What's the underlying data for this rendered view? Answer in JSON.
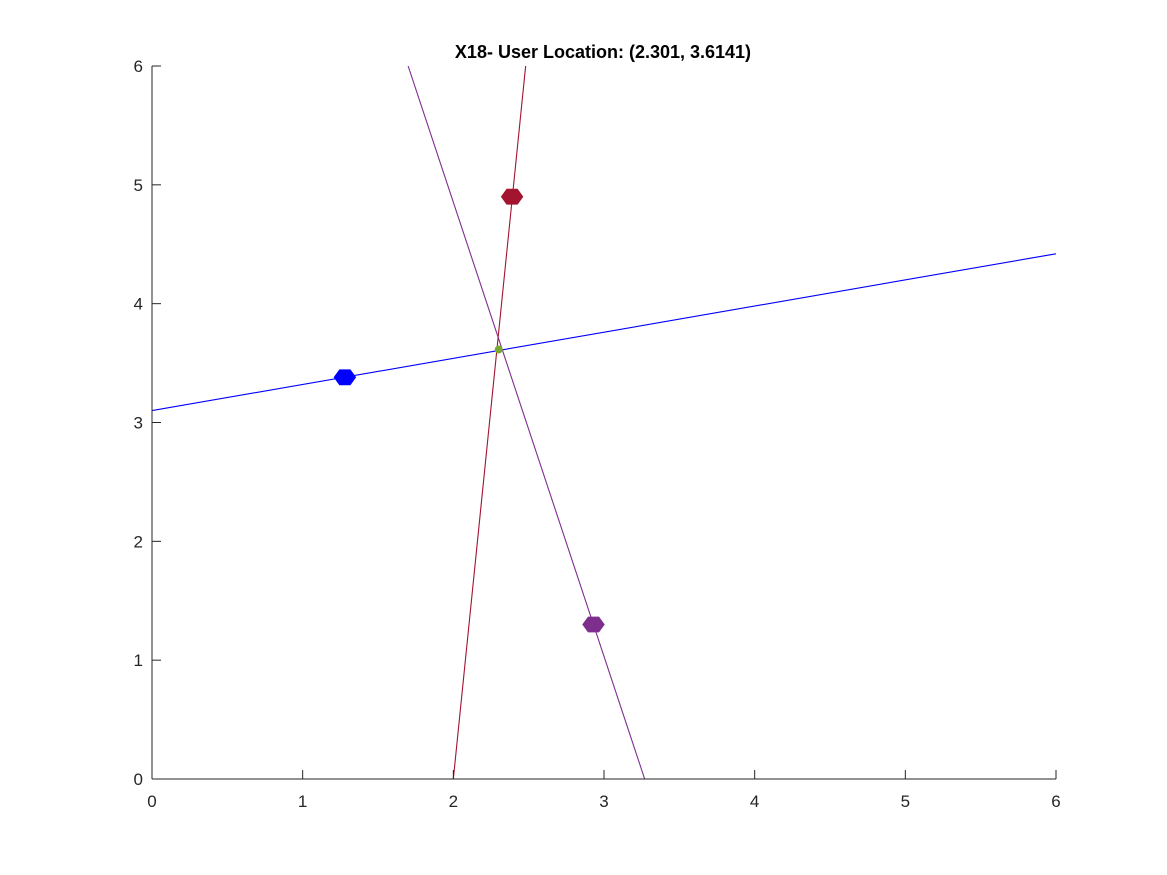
{
  "chart_data": {
    "type": "scatter",
    "title": "X18- User Location: (2.301, 3.6141)",
    "xlabel": "",
    "ylabel": "",
    "xlim": [
      0,
      6
    ],
    "ylim": [
      0,
      6
    ],
    "xticks": [
      0,
      1,
      2,
      3,
      4,
      5,
      6
    ],
    "yticks": [
      0,
      1,
      2,
      3,
      4,
      5,
      6
    ],
    "grid": false,
    "box": "left-bottom",
    "series": [
      {
        "kind": "anchor-point",
        "color": "#0000ff",
        "points": [
          [
            1.28,
            3.38
          ]
        ]
      },
      {
        "kind": "anchor-point",
        "color": "#a2142f",
        "points": [
          [
            2.39,
            4.9
          ]
        ]
      },
      {
        "kind": "anchor-point",
        "color": "#7e2f8e",
        "points": [
          [
            2.93,
            1.3
          ]
        ]
      },
      {
        "kind": "line",
        "color": "#0000ff",
        "points": [
          [
            0,
            3.1
          ],
          [
            6,
            4.42
          ]
        ]
      },
      {
        "kind": "line",
        "color": "#a2142f",
        "points": [
          [
            2.0,
            0
          ],
          [
            2.48,
            6
          ]
        ]
      },
      {
        "kind": "line",
        "color": "#7e2f8e",
        "points": [
          [
            1.7,
            6
          ],
          [
            3.27,
            0
          ]
        ]
      },
      {
        "kind": "user-location",
        "color": "#77ac30",
        "points": [
          [
            2.301,
            3.6141
          ]
        ]
      }
    ]
  }
}
